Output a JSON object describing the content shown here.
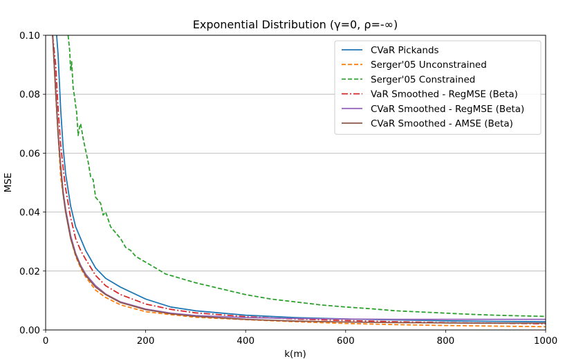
{
  "chart_data": {
    "type": "line",
    "title": "Exponential Distribution (γ=0, ρ=-∞)",
    "xlabel": "k(m)",
    "ylabel": "MSE",
    "xlim": [
      0,
      1000
    ],
    "ylim": [
      0,
      0.1
    ],
    "xticks": [
      0,
      200,
      400,
      600,
      800,
      1000
    ],
    "xtick_labels": [
      "0",
      "200",
      "400",
      "600",
      "800",
      "1000"
    ],
    "yticks": [
      0,
      0.02,
      0.04,
      0.06,
      0.08,
      0.1
    ],
    "ytick_labels": [
      "0.00",
      "0.02",
      "0.04",
      "0.06",
      "0.08",
      "0.10"
    ],
    "grid": "horizontal",
    "legend_position": "upper-right",
    "series": [
      {
        "name": "CVaR Pickands",
        "color": "#1f77b4",
        "style": "solid",
        "x": [
          22,
          25,
          30,
          35,
          40,
          50,
          60,
          70,
          80,
          100,
          120,
          150,
          200,
          250,
          300,
          400,
          500,
          600,
          700,
          800,
          900,
          1000
        ],
        "y": [
          0.1,
          0.093,
          0.075,
          0.062,
          0.053,
          0.042,
          0.035,
          0.031,
          0.027,
          0.021,
          0.0175,
          0.0145,
          0.0105,
          0.0078,
          0.0065,
          0.005,
          0.0042,
          0.0037,
          0.0034,
          0.0031,
          0.0029,
          0.0028
        ]
      },
      {
        "name": "Serger'05 Unconstrained",
        "color": "#ff7f0e",
        "style": "dashed",
        "x": [
          14,
          20,
          30,
          40,
          50,
          60,
          70,
          80,
          100,
          120,
          150,
          200,
          250,
          300,
          400,
          500,
          600,
          700,
          800,
          900,
          1000
        ],
        "y": [
          0.1,
          0.08,
          0.052,
          0.04,
          0.031,
          0.025,
          0.021,
          0.018,
          0.0135,
          0.011,
          0.0085,
          0.0062,
          0.0052,
          0.0043,
          0.0035,
          0.0028,
          0.0022,
          0.0018,
          0.0015,
          0.0013,
          0.0011
        ]
      },
      {
        "name": "Serger'05 Constrained",
        "color": "#2ca02c",
        "style": "dashed",
        "x": [
          45,
          48,
          50,
          52,
          55,
          58,
          60,
          62,
          65,
          68,
          70,
          72,
          75,
          80,
          85,
          90,
          95,
          100,
          105,
          110,
          115,
          120,
          130,
          140,
          150,
          160,
          170,
          180,
          190,
          200,
          220,
          240,
          260,
          280,
          300,
          350,
          400,
          450,
          500,
          550,
          600,
          650,
          700,
          750,
          800,
          850,
          900,
          950,
          1000
        ],
        "y": [
          0.1,
          0.095,
          0.088,
          0.091,
          0.082,
          0.079,
          0.076,
          0.074,
          0.066,
          0.069,
          0.07,
          0.068,
          0.065,
          0.061,
          0.057,
          0.052,
          0.051,
          0.045,
          0.044,
          0.043,
          0.039,
          0.04,
          0.035,
          0.033,
          0.031,
          0.028,
          0.027,
          0.025,
          0.024,
          0.023,
          0.021,
          0.019,
          0.018,
          0.017,
          0.016,
          0.014,
          0.012,
          0.0105,
          0.0095,
          0.0085,
          0.0078,
          0.0072,
          0.0065,
          0.0061,
          0.0057,
          0.0053,
          0.005,
          0.0048,
          0.0046
        ]
      },
      {
        "name": "VaR Smoothed - RegMSE (Beta)",
        "color": "#d62728",
        "style": "dashdot",
        "x": [
          14,
          20,
          25,
          30,
          35,
          40,
          50,
          60,
          70,
          80,
          100,
          120,
          150,
          200,
          250,
          300,
          400,
          500,
          600,
          700,
          800,
          900,
          1000
        ],
        "y": [
          0.1,
          0.09,
          0.075,
          0.063,
          0.055,
          0.048,
          0.038,
          0.031,
          0.027,
          0.024,
          0.0185,
          0.015,
          0.012,
          0.0088,
          0.007,
          0.0058,
          0.0045,
          0.0037,
          0.0032,
          0.0028,
          0.0025,
          0.0023,
          0.0021
        ]
      },
      {
        "name": "CVaR Smoothed - RegMSE (Beta)",
        "color": "#9467bd",
        "style": "solid",
        "x": [
          14,
          20,
          25,
          30,
          35,
          40,
          50,
          60,
          70,
          80,
          100,
          120,
          150,
          200,
          250,
          300,
          400,
          500,
          600,
          700,
          800,
          900,
          1000
        ],
        "y": [
          0.1,
          0.082,
          0.067,
          0.056,
          0.047,
          0.041,
          0.032,
          0.026,
          0.022,
          0.019,
          0.015,
          0.0122,
          0.0095,
          0.0071,
          0.0057,
          0.0049,
          0.0042,
          0.0039,
          0.0037,
          0.0036,
          0.0036,
          0.0036,
          0.0036
        ]
      },
      {
        "name": "CVaR Smoothed - AMSE (Beta)",
        "color": "#8c564b",
        "style": "solid",
        "x": [
          14,
          20,
          25,
          30,
          35,
          40,
          50,
          60,
          70,
          80,
          100,
          120,
          150,
          200,
          250,
          300,
          400,
          500,
          600,
          700,
          800,
          900,
          1000
        ],
        "y": [
          0.1,
          0.081,
          0.066,
          0.055,
          0.046,
          0.04,
          0.031,
          0.0255,
          0.0215,
          0.0185,
          0.0145,
          0.012,
          0.0093,
          0.0069,
          0.0055,
          0.0046,
          0.0036,
          0.003,
          0.0027,
          0.0025,
          0.0024,
          0.0023,
          0.0023
        ]
      }
    ]
  }
}
